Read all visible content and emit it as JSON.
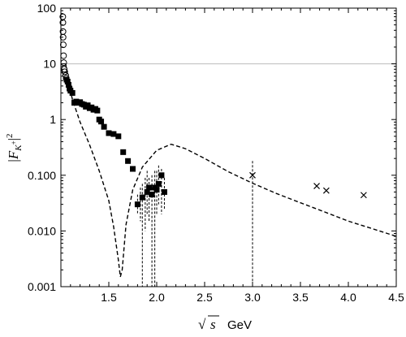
{
  "chart_data": {
    "type": "scatter",
    "title": "",
    "xlabel": "√s GeV",
    "xlabel_parts": {
      "symbol": "s",
      "unit": "GeV"
    },
    "ylabel": "|F_{K+}|^2",
    "ylabel_parts": {
      "base": "F",
      "subscript": "K",
      "superscript_sub": "+",
      "power": "2"
    },
    "xlim": [
      1.0,
      4.5
    ],
    "ylim": [
      0.001,
      100
    ],
    "y_scale": "log",
    "grid": false,
    "reference_line_y": 10,
    "x_ticks": [
      {
        "value": 1.5,
        "label": "1.5"
      },
      {
        "value": 2.0,
        "label": "2.0"
      },
      {
        "value": 2.5,
        "label": "2.5"
      },
      {
        "value": 3.0,
        "label": "3.0"
      },
      {
        "value": 3.5,
        "label": "3.5"
      },
      {
        "value": 4.0,
        "label": "4.0"
      },
      {
        "value": 4.5,
        "label": "4.5"
      }
    ],
    "y_ticks": [
      {
        "value": 0.001,
        "label": "0.001"
      },
      {
        "value": 0.01,
        "label": "0.010"
      },
      {
        "value": 0.1,
        "label": "0.100"
      },
      {
        "value": 1,
        "label": "1"
      },
      {
        "value": 10,
        "label": "10"
      },
      {
        "value": 100,
        "label": "100"
      }
    ],
    "series": [
      {
        "marker": "circle",
        "points": [
          {
            "x": 1.02,
            "y": 70
          },
          {
            "x": 1.021,
            "y": 55
          },
          {
            "x": 1.022,
            "y": 38
          },
          {
            "x": 1.023,
            "y": 30
          },
          {
            "x": 1.025,
            "y": 22
          },
          {
            "x": 1.028,
            "y": 14
          },
          {
            "x": 1.03,
            "y": 10.5
          },
          {
            "x": 1.035,
            "y": 8
          },
          {
            "x": 1.04,
            "y": 7.2
          },
          {
            "x": 1.05,
            "y": 6.2
          },
          {
            "x": 1.055,
            "y": 5.5
          }
        ]
      },
      {
        "marker": "square",
        "points": [
          {
            "x": 1.06,
            "y": 5.2
          },
          {
            "x": 1.07,
            "y": 4.8
          },
          {
            "x": 1.08,
            "y": 4.2
          },
          {
            "x": 1.09,
            "y": 3.6
          },
          {
            "x": 1.1,
            "y": 3.3
          },
          {
            "x": 1.12,
            "y": 3.0
          },
          {
            "x": 1.14,
            "y": 2.0
          },
          {
            "x": 1.16,
            "y": 2.1
          },
          {
            "x": 1.18,
            "y": 2.0
          },
          {
            "x": 1.2,
            "y": 2.05
          },
          {
            "x": 1.22,
            "y": 1.9
          },
          {
            "x": 1.24,
            "y": 1.85
          },
          {
            "x": 1.26,
            "y": 1.7
          },
          {
            "x": 1.28,
            "y": 1.8
          },
          {
            "x": 1.3,
            "y": 1.6
          },
          {
            "x": 1.32,
            "y": 1.65
          },
          {
            "x": 1.34,
            "y": 1.5
          },
          {
            "x": 1.36,
            "y": 1.55
          },
          {
            "x": 1.38,
            "y": 1.45
          },
          {
            "x": 1.4,
            "y": 1.0
          },
          {
            "x": 1.42,
            "y": 0.92
          },
          {
            "x": 1.45,
            "y": 0.74
          },
          {
            "x": 1.5,
            "y": 0.57
          },
          {
            "x": 1.55,
            "y": 0.55
          },
          {
            "x": 1.6,
            "y": 0.5
          },
          {
            "x": 1.65,
            "y": 0.26
          },
          {
            "x": 1.7,
            "y": 0.18
          },
          {
            "x": 1.75,
            "y": 0.13
          },
          {
            "x": 1.8,
            "y": 0.03
          },
          {
            "x": 1.85,
            "y": 0.04
          },
          {
            "x": 1.9,
            "y": 0.05
          },
          {
            "x": 1.92,
            "y": 0.06
          },
          {
            "x": 1.95,
            "y": 0.045
          },
          {
            "x": 1.98,
            "y": 0.06
          },
          {
            "x": 2.0,
            "y": 0.055
          },
          {
            "x": 2.02,
            "y": 0.07
          },
          {
            "x": 2.05,
            "y": 0.1
          },
          {
            "x": 2.08,
            "y": 0.05
          }
        ]
      },
      {
        "marker": "cross",
        "points": [
          {
            "x": 3.0,
            "y": 0.1
          },
          {
            "x": 3.67,
            "y": 0.064
          },
          {
            "x": 3.77,
            "y": 0.053
          },
          {
            "x": 4.16,
            "y": 0.044
          }
        ]
      },
      {
        "marker": "line-dashed",
        "points": [
          {
            "x": 1.05,
            "y": 10
          },
          {
            "x": 1.08,
            "y": 4.5
          },
          {
            "x": 1.12,
            "y": 2.3
          },
          {
            "x": 1.2,
            "y": 0.9
          },
          {
            "x": 1.3,
            "y": 0.35
          },
          {
            "x": 1.4,
            "y": 0.12
          },
          {
            "x": 1.5,
            "y": 0.035
          },
          {
            "x": 1.55,
            "y": 0.012
          },
          {
            "x": 1.6,
            "y": 0.003
          },
          {
            "x": 1.62,
            "y": 0.0015
          },
          {
            "x": 1.64,
            "y": 0.002
          },
          {
            "x": 1.68,
            "y": 0.013
          },
          {
            "x": 1.75,
            "y": 0.055
          },
          {
            "x": 1.85,
            "y": 0.14
          },
          {
            "x": 2.0,
            "y": 0.28
          },
          {
            "x": 2.15,
            "y": 0.36
          },
          {
            "x": 2.3,
            "y": 0.3
          },
          {
            "x": 2.5,
            "y": 0.2
          },
          {
            "x": 2.75,
            "y": 0.115
          },
          {
            "x": 3.0,
            "y": 0.072
          },
          {
            "x": 3.25,
            "y": 0.047
          },
          {
            "x": 3.5,
            "y": 0.032
          },
          {
            "x": 3.75,
            "y": 0.022
          },
          {
            "x": 4.0,
            "y": 0.015
          },
          {
            "x": 4.25,
            "y": 0.011
          },
          {
            "x": 4.5,
            "y": 0.008
          }
        ]
      }
    ],
    "error_bars": [
      {
        "x": 1.8,
        "low": 0.02,
        "high": 0.045
      },
      {
        "x": 1.83,
        "low": 0.015,
        "high": 0.06
      },
      {
        "x": 1.85,
        "low": 0.001,
        "high": 0.07
      },
      {
        "x": 1.88,
        "low": 0.01,
        "high": 0.09
      },
      {
        "x": 1.9,
        "low": 0.02,
        "high": 0.12
      },
      {
        "x": 1.92,
        "low": 0.015,
        "high": 0.09
      },
      {
        "x": 1.95,
        "low": 0.001,
        "high": 0.1
      },
      {
        "x": 1.98,
        "low": 0.001,
        "high": 0.12
      },
      {
        "x": 2.0,
        "low": 0.02,
        "high": 0.12
      },
      {
        "x": 2.02,
        "low": 0.03,
        "high": 0.15
      },
      {
        "x": 2.05,
        "low": 0.02,
        "high": 0.13
      },
      {
        "x": 2.08,
        "low": 0.025,
        "high": 0.09
      },
      {
        "x": 3.0,
        "low": 0.001,
        "high": 0.18
      }
    ]
  }
}
